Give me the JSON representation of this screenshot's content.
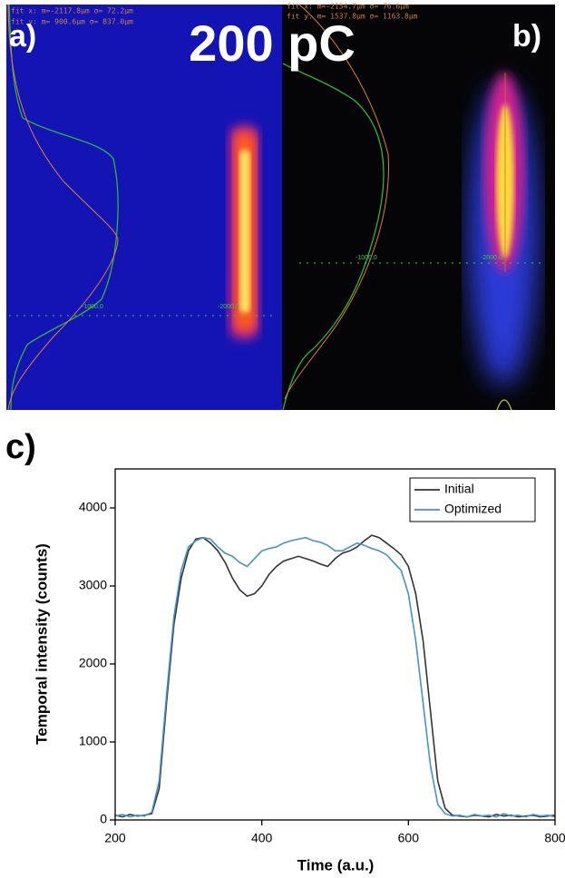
{
  "panels": {
    "title": "200 pC",
    "a": {
      "label": "a)",
      "fit_x": "fit x: m=-2117.8μm σ=  72.2μm",
      "fit_y": "fit y: m=  900.6μm σ= 837.0μm",
      "grid_x1": "-1000.0",
      "grid_x2": "-2000.0"
    },
    "b": {
      "label": "b)",
      "fit_x": "fit x: m=-2154.7μm σ=  76.6μm",
      "fit_y": "fit y: m= 1537.8μm σ= 1163.8μm",
      "grid_x1": "-1000.0",
      "grid_x2": "-2000.0"
    }
  },
  "chart_data": {
    "type": "line",
    "title": "c)",
    "x_label": "Time (a.u.)",
    "y_label": "Temporal intensity (counts)",
    "x": [
      200,
      210,
      220,
      230,
      240,
      250,
      260,
      270,
      280,
      290,
      300,
      310,
      320,
      330,
      340,
      350,
      360,
      370,
      380,
      390,
      400,
      410,
      420,
      430,
      440,
      450,
      460,
      470,
      480,
      490,
      500,
      510,
      520,
      530,
      540,
      550,
      560,
      570,
      580,
      590,
      600,
      610,
      620,
      630,
      640,
      650,
      660,
      670,
      680,
      690,
      700,
      710,
      720,
      730,
      740,
      750,
      760,
      770,
      780,
      790,
      800
    ],
    "series": [
      {
        "name": "Initial",
        "color": "#333333",
        "values": [
          60,
          40,
          70,
          50,
          60,
          80,
          400,
          1500,
          2500,
          3100,
          3450,
          3600,
          3620,
          3550,
          3450,
          3300,
          3100,
          2950,
          2870,
          2900,
          3000,
          3150,
          3250,
          3320,
          3350,
          3380,
          3350,
          3320,
          3280,
          3250,
          3350,
          3420,
          3450,
          3500,
          3580,
          3650,
          3620,
          3550,
          3480,
          3400,
          3250,
          2900,
          2300,
          1400,
          500,
          150,
          60,
          50,
          40,
          60,
          50,
          40,
          70,
          50,
          60,
          40,
          50,
          60,
          40,
          50,
          60
        ]
      },
      {
        "name": "Optimized",
        "color": "#4a90c8",
        "values": [
          50,
          70,
          40,
          60,
          50,
          100,
          500,
          1600,
          2600,
          3200,
          3500,
          3580,
          3620,
          3600,
          3500,
          3420,
          3380,
          3300,
          3250,
          3350,
          3450,
          3480,
          3500,
          3550,
          3580,
          3600,
          3620,
          3580,
          3560,
          3520,
          3450,
          3450,
          3500,
          3550,
          3520,
          3480,
          3450,
          3400,
          3300,
          3200,
          2900,
          2300,
          1500,
          700,
          200,
          80,
          50,
          60,
          40,
          70,
          50,
          60,
          40,
          80,
          50,
          60,
          40,
          70,
          50,
          60,
          40
        ]
      }
    ],
    "xlim": [
      200,
      800
    ],
    "xticks": [
      200,
      400,
      600,
      800
    ],
    "ylim": [
      0,
      4500
    ],
    "yticks": [
      0,
      1000,
      2000,
      3000,
      4000
    ],
    "legend": "upper right"
  }
}
